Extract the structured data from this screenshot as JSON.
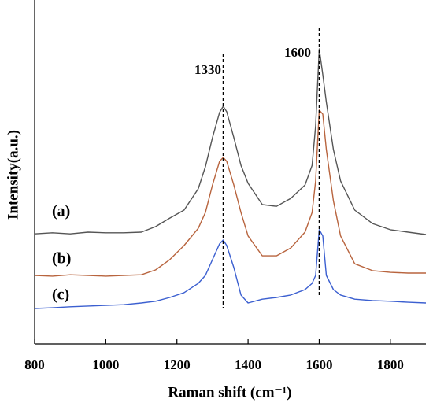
{
  "chart_data": {
    "type": "line",
    "xlabel": "Raman shift (cm⁻¹)",
    "ylabel": "Intensity(a.u.)",
    "x": [
      800,
      850,
      900,
      950,
      1000,
      1050,
      1100,
      1140,
      1180,
      1220,
      1260,
      1280,
      1300,
      1320,
      1330,
      1340,
      1360,
      1380,
      1400,
      1440,
      1480,
      1520,
      1560,
      1580,
      1590,
      1600,
      1610,
      1620,
      1640,
      1660,
      1700,
      1750,
      1800,
      1850,
      1900
    ],
    "series": [
      {
        "name": "(a)",
        "color": "#555555",
        "values": [
          32.0,
          32.3,
          32.0,
          32.5,
          32.3,
          32.3,
          32.5,
          34.1,
          36.6,
          38.9,
          45.1,
          51.5,
          60.0,
          67.3,
          69.1,
          67.5,
          60.0,
          51.9,
          46.7,
          40.5,
          40.0,
          42.3,
          46.2,
          51.9,
          63.4,
          85.8,
          78.3,
          70.3,
          56.5,
          47.4,
          38.9,
          35.0,
          33.2,
          32.5,
          31.8
        ]
      },
      {
        "name": "(b)",
        "color": "#b8643e",
        "values": [
          19.9,
          19.7,
          20.1,
          19.9,
          19.7,
          19.9,
          20.1,
          21.5,
          24.5,
          28.6,
          33.6,
          38.2,
          46.2,
          53.1,
          54.2,
          53.1,
          46.2,
          38.2,
          31.4,
          25.6,
          25.6,
          27.9,
          32.5,
          38.2,
          47.4,
          68.0,
          66.8,
          56.5,
          41.6,
          31.4,
          23.3,
          21.3,
          20.8,
          20.6,
          20.6
        ]
      },
      {
        "name": "(c)",
        "color": "#3b5fd0",
        "values": [
          10.3,
          10.5,
          10.8,
          11.0,
          11.2,
          11.4,
          11.9,
          12.4,
          13.5,
          14.9,
          17.6,
          19.9,
          24.5,
          29.1,
          30.2,
          28.6,
          22.2,
          14.2,
          11.9,
          13.0,
          13.5,
          14.2,
          15.8,
          17.6,
          19.9,
          33.2,
          31.4,
          19.9,
          15.8,
          14.2,
          13.0,
          12.6,
          12.4,
          12.1,
          11.9
        ]
      }
    ],
    "xlim": [
      800,
      1900
    ],
    "xticks": [
      800,
      1000,
      1200,
      1400,
      1600,
      1800
    ],
    "ylim": [
      0,
      100
    ],
    "vlines": [
      1330,
      1600
    ]
  }
}
